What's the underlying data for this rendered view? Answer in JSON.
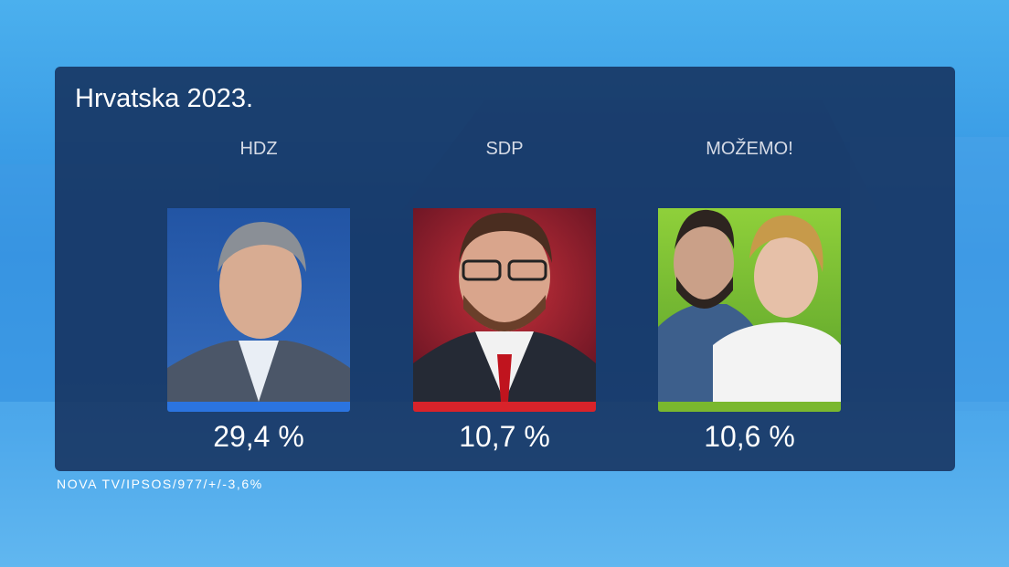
{
  "header": {
    "title": "Hrvatska 2023."
  },
  "parties": [
    {
      "name": "HDZ",
      "result": "29,4 %"
    },
    {
      "name": "SDP",
      "result": "10,7 %"
    },
    {
      "name": "MOŽEMO!",
      "result": "10,6 %"
    }
  ],
  "footer": {
    "source": "NOVA TV/IPSOS/977/+/-3,6%"
  }
}
